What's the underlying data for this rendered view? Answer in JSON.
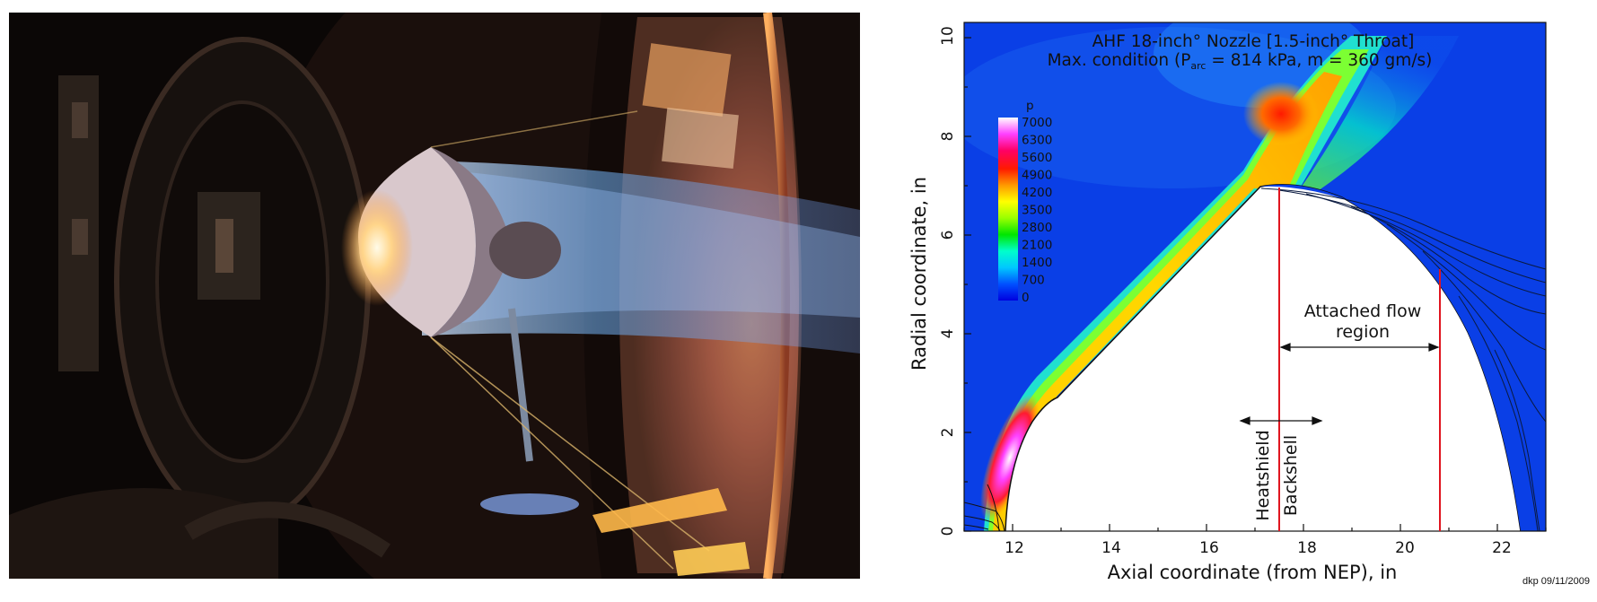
{
  "photo": {
    "subject": "arc-jet test photograph"
  },
  "plot": {
    "title_line1": "AHF 18-inch° Nozzle [1.5-inch° Throat]",
    "title_line2_pre": "Max. condition (P",
    "title_line2_sub": "arc",
    "title_line2_post": " = 814 kPa, m = 360 gm/s)",
    "xlabel": "Axial coordinate (from NEP), in",
    "ylabel": "Radial coordinate, in",
    "xticks": [
      "12",
      "14",
      "16",
      "18",
      "20",
      "22"
    ],
    "yticks": [
      "0",
      "2",
      "4",
      "6",
      "8",
      "10"
    ],
    "legend": {
      "title": "p",
      "labels": [
        "7000",
        "6300",
        "5600",
        "4900",
        "4200",
        "3500",
        "2800",
        "2100",
        "1400",
        "700",
        "0"
      ],
      "colors": [
        "#ffffff",
        "#ff40ff",
        "#ff0066",
        "#ff1a00",
        "#ff9900",
        "#ffff00",
        "#99ff00",
        "#00e600",
        "#00ffcc",
        "#00c8ff",
        "#0050ff",
        "#0000e0"
      ]
    },
    "annotations": {
      "attached_line1": "Attached flow",
      "attached_line2": "region",
      "heatshield": "Heatshield",
      "backshell": "Backshell"
    },
    "credit": "dkp 09/11/2009",
    "colors": {
      "background_field": "#0a3fe6",
      "red_lines": "#e0151f"
    }
  }
}
